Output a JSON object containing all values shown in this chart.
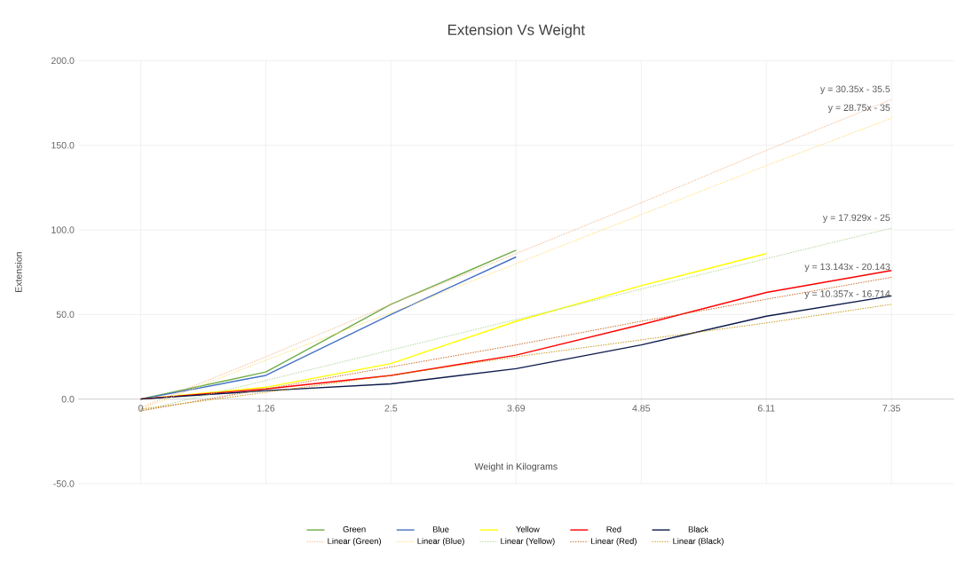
{
  "chart_data": {
    "type": "line",
    "title": "Extension Vs Weight",
    "xlabel": "Weight in Kilograms",
    "ylabel": "Extension",
    "categories": [
      "0",
      "1.26",
      "2.5",
      "3.69",
      "4.85",
      "6.11",
      "7.35"
    ],
    "series": [
      {
        "name": "Green",
        "color": "#70ad47",
        "values": [
          0,
          16,
          56,
          88,
          null,
          null,
          null
        ]
      },
      {
        "name": "Blue",
        "color": "#4472c4",
        "values": [
          0,
          14,
          50,
          84,
          null,
          null,
          null
        ]
      },
      {
        "name": "Yellow",
        "color": "#ffff00",
        "values": [
          0,
          7,
          21,
          46,
          67,
          86,
          null
        ]
      },
      {
        "name": "Red",
        "color": "#ff0000",
        "values": [
          0,
          6,
          14,
          26,
          44,
          63,
          76
        ]
      },
      {
        "name": "Black",
        "color": "#0d1a4a",
        "values": [
          0,
          5,
          9,
          18,
          32,
          49,
          61
        ]
      },
      {
        "name": "Linear (Green)",
        "color": "#f4b183",
        "line_style": "dotted",
        "values": [
          -5,
          25,
          56,
          86,
          116,
          147,
          177
        ]
      },
      {
        "name": "Linear (Blue)",
        "color": "#ffd966",
        "line_style": "dotted",
        "values": [
          -6,
          23,
          51,
          80,
          109,
          138,
          166
        ]
      },
      {
        "name": "Linear (Yellow)",
        "color": "#a9d18e",
        "line_style": "dotted",
        "values": [
          -7,
          11,
          29,
          47,
          65,
          83,
          101
        ]
      },
      {
        "name": "Linear (Red)",
        "color": "#c55a11",
        "line_style": "dotted",
        "values": [
          -7,
          6,
          19,
          32,
          46,
          59,
          72
        ]
      },
      {
        "name": "Linear (Black)",
        "color": "#bf9000",
        "line_style": "dotted",
        "values": [
          -6,
          4,
          14,
          25,
          35,
          45,
          56
        ]
      }
    ],
    "ylim": [
      -50,
      200
    ],
    "yticks": [
      {
        "value": -50,
        "label": "-50.0"
      },
      {
        "value": 0,
        "label": "0.0"
      },
      {
        "value": 50,
        "label": "50.0"
      },
      {
        "value": 100,
        "label": "100.0"
      },
      {
        "value": 150,
        "label": "150.0"
      },
      {
        "value": 200,
        "label": "200.0"
      }
    ],
    "annotations": [
      {
        "text": "y = 30.35x - 35.5",
        "x": "7.35",
        "y": 177
      },
      {
        "text": "y = 28.75x - 35",
        "x": "7.35",
        "y": 166
      },
      {
        "text": "y = 17.929x - 25",
        "x": "7.35",
        "y": 101
      },
      {
        "text": "y = 13.143x - 20.143",
        "x": "7.35",
        "y": 72
      },
      {
        "text": "y = 10.357x - 16.714",
        "x": "7.35",
        "y": 56
      }
    ],
    "grid": true,
    "legend": "bottom",
    "marker": "none",
    "line_style": "solid"
  }
}
